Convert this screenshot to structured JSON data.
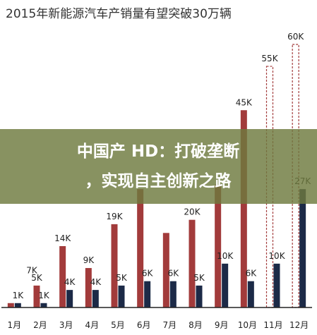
{
  "chart_data": {
    "type": "bar",
    "title": "2015年新能源汽车产销量有望突破30万辆",
    "categories": [
      "1月",
      "2月",
      "3月",
      "4月",
      "5月",
      "6月",
      "7月",
      "8月",
      "9月",
      "10月",
      "11月",
      "12月"
    ],
    "series": [
      {
        "values": [
          1,
          5,
          14,
          9,
          19,
          27,
          17,
          20,
          28,
          45,
          55,
          60
        ],
        "labels": [
          "",
          "5K",
          "14K",
          "9K",
          "19K",
          "",
          "",
          "20K",
          "",
          "45K",
          "55K",
          "60K"
        ],
        "color": "#a23b3b",
        "style": [
          "solid",
          "solid",
          "solid",
          "solid",
          "solid",
          "solid",
          "solid",
          "solid",
          "solid",
          "solid",
          "dashed",
          "dashed"
        ]
      },
      {
        "values": [
          1,
          1,
          4,
          4,
          5,
          6,
          6,
          5,
          10,
          6,
          10,
          27
        ],
        "labels": [
          "1K",
          "1K",
          "4K",
          "4K",
          "5K",
          "6K",
          "6K",
          "5K",
          "10K",
          "6K",
          "10K",
          "27K"
        ],
        "color": "#1c2a47",
        "style": [
          "solid",
          "solid",
          "solid",
          "solid",
          "solid",
          "solid",
          "solid",
          "solid",
          "solid",
          "solid",
          "solid",
          "solid"
        ]
      }
    ],
    "extra_labels": [
      {
        "text": "7K",
        "category_index": 1,
        "value": 7
      }
    ],
    "ylim": [
      0,
      60
    ],
    "grid": false,
    "colors": {
      "red": "#a23b3b",
      "navy": "#1c2a47",
      "axis": "#222222"
    }
  },
  "overlay": {
    "line1": "中国产 HD：打破垄断",
    "line2": "，实现自主创新之路",
    "color": "#6e7a3e"
  }
}
